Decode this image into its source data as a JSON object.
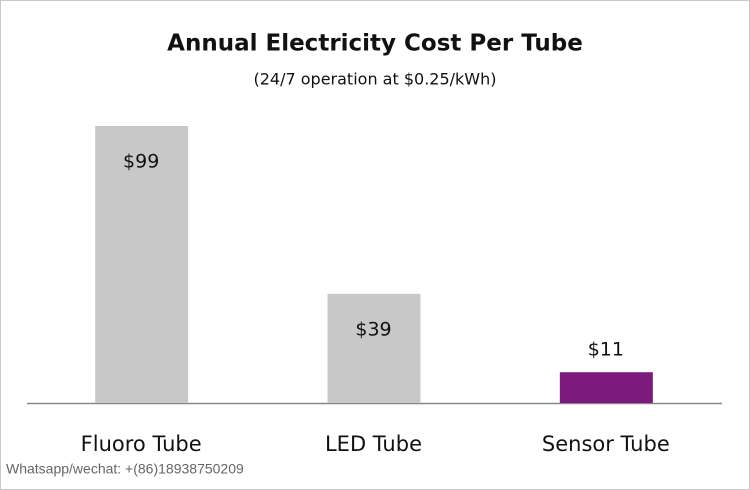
{
  "chart_data": {
    "type": "bar",
    "title": "Annual Electricity Cost Per Tube",
    "subtitle": "(24/7 operation at $0.25/kWh)",
    "categories": [
      "Fluoro Tube",
      "LED Tube",
      "Sensor Tube"
    ],
    "values": [
      99,
      39,
      11
    ],
    "value_labels": [
      "$99",
      "$39",
      "$11"
    ],
    "colors": [
      "#c8c8c8",
      "#c8c8c8",
      "#7d1a7d"
    ],
    "watermark": "Whatsapp/wechat: +(86)18938750209"
  }
}
